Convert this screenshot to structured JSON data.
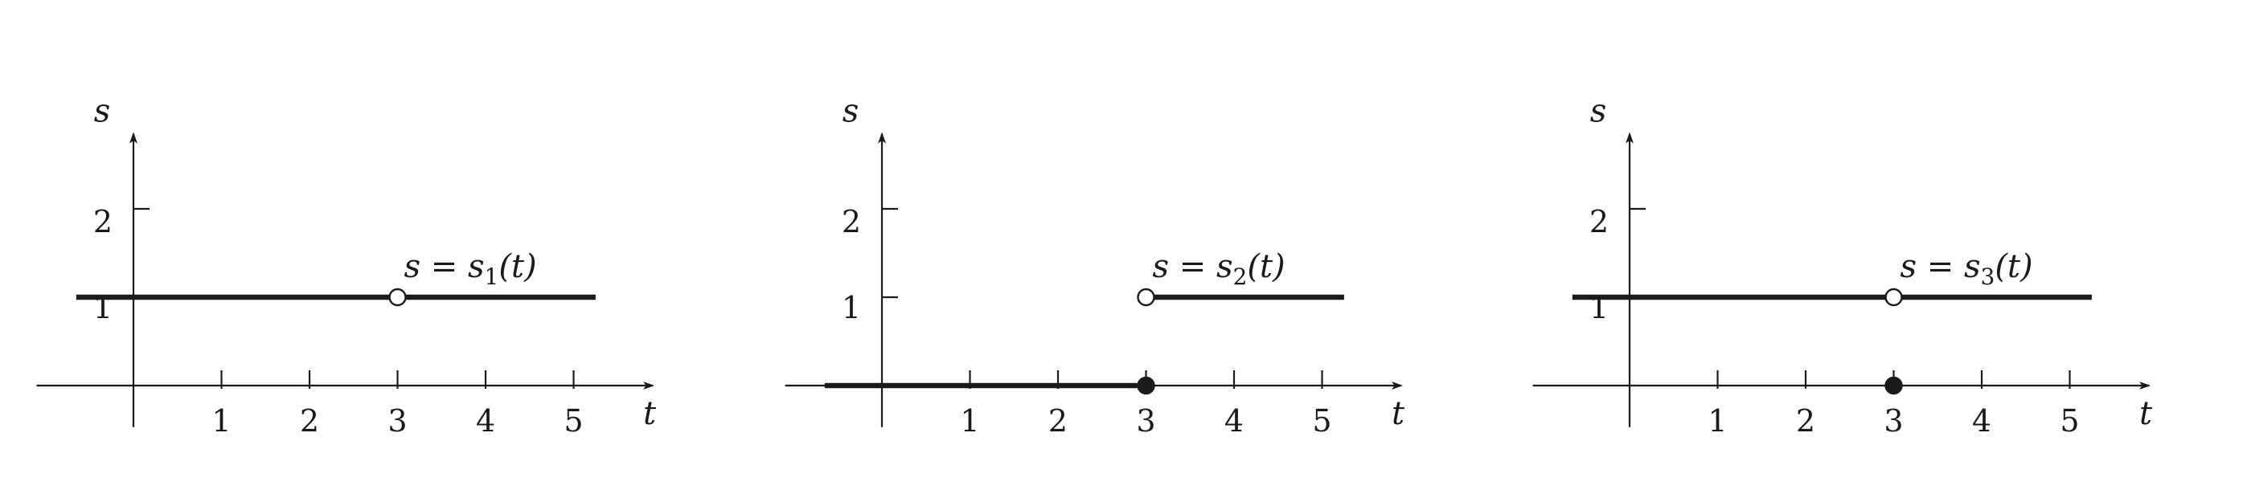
{
  "chart_data": [
    {
      "type": "line",
      "xlabel": "t",
      "ylabel": "s",
      "x_ticks": [
        1,
        2,
        3,
        4,
        5
      ],
      "y_ticks": [
        1,
        2
      ],
      "xlim": [
        -1,
        6
      ],
      "ylim": [
        0,
        3
      ],
      "curve_label": "s = s1(t)",
      "series": [
        {
          "x": [
            -0.65,
            5.25
          ],
          "y": [
            1,
            1
          ]
        }
      ],
      "points": [
        {
          "x": 3,
          "y": 1,
          "style": "open"
        }
      ]
    },
    {
      "type": "line",
      "xlabel": "t",
      "ylabel": "s",
      "x_ticks": [
        1,
        2,
        3,
        4,
        5
      ],
      "y_ticks": [
        1,
        2
      ],
      "xlim": [
        -1,
        6
      ],
      "ylim": [
        0,
        3
      ],
      "curve_label": "s = s2(t)",
      "series": [
        {
          "x": [
            -0.65,
            3
          ],
          "y": [
            0,
            0
          ]
        },
        {
          "x": [
            3,
            5.25
          ],
          "y": [
            1,
            1
          ]
        }
      ],
      "points": [
        {
          "x": 3,
          "y": 1,
          "style": "open"
        },
        {
          "x": 3,
          "y": 0,
          "style": "filled"
        }
      ]
    },
    {
      "type": "line",
      "xlabel": "t",
      "ylabel": "s",
      "x_ticks": [
        1,
        2,
        3,
        4,
        5
      ],
      "y_ticks": [
        1,
        2
      ],
      "xlim": [
        -1,
        6
      ],
      "ylim": [
        0,
        3
      ],
      "curve_label": "s = s3(t)",
      "series": [
        {
          "x": [
            -0.65,
            5.25
          ],
          "y": [
            1,
            1
          ]
        }
      ],
      "points": [
        {
          "x": 3,
          "y": 1,
          "style": "open"
        },
        {
          "x": 3,
          "y": 0,
          "style": "filled"
        }
      ]
    }
  ]
}
